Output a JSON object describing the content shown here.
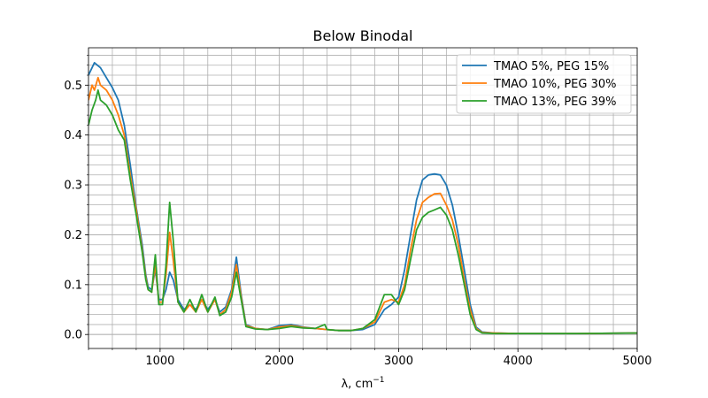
{
  "chart_data": {
    "type": "line",
    "title": "Below Binodal",
    "xlabel": "λ, cm",
    "xlabel_superscript": "−1",
    "ylabel": "",
    "xlim": [
      400,
      5000
    ],
    "ylim": [
      -0.028,
      0.575
    ],
    "x_ticks": [
      1000,
      2000,
      3000,
      4000,
      5000
    ],
    "x_tick_labels": [
      "1000",
      "2000",
      "3000",
      "4000",
      "5000"
    ],
    "y_ticks": [
      0.0,
      0.1,
      0.2,
      0.3,
      0.4,
      0.5
    ],
    "y_tick_labels": [
      "0.0",
      "0.1",
      "0.2",
      "0.3",
      "0.4",
      "0.5"
    ],
    "x_minor_step": 200,
    "y_minor_step": 0.02,
    "grid": true,
    "legend_position": "top-right",
    "series": [
      {
        "name": "TMAO 5%, PEG 15%",
        "color": "#1f77b4",
        "points": [
          [
            400,
            0.52
          ],
          [
            450,
            0.545
          ],
          [
            500,
            0.535
          ],
          [
            550,
            0.515
          ],
          [
            600,
            0.495
          ],
          [
            650,
            0.47
          ],
          [
            700,
            0.42
          ],
          [
            750,
            0.34
          ],
          [
            800,
            0.255
          ],
          [
            850,
            0.18
          ],
          [
            880,
            0.12
          ],
          [
            900,
            0.095
          ],
          [
            930,
            0.09
          ],
          [
            960,
            0.13
          ],
          [
            990,
            0.07
          ],
          [
            1020,
            0.07
          ],
          [
            1050,
            0.09
          ],
          [
            1080,
            0.125
          ],
          [
            1110,
            0.11
          ],
          [
            1150,
            0.07
          ],
          [
            1200,
            0.05
          ],
          [
            1250,
            0.06
          ],
          [
            1300,
            0.05
          ],
          [
            1350,
            0.07
          ],
          [
            1400,
            0.05
          ],
          [
            1460,
            0.07
          ],
          [
            1500,
            0.045
          ],
          [
            1550,
            0.055
          ],
          [
            1600,
            0.09
          ],
          [
            1640,
            0.155
          ],
          [
            1680,
            0.08
          ],
          [
            1720,
            0.02
          ],
          [
            1800,
            0.012
          ],
          [
            1900,
            0.01
          ],
          [
            2000,
            0.018
          ],
          [
            2100,
            0.02
          ],
          [
            2200,
            0.015
          ],
          [
            2300,
            0.012
          ],
          [
            2400,
            0.01
          ],
          [
            2500,
            0.008
          ],
          [
            2600,
            0.008
          ],
          [
            2700,
            0.01
          ],
          [
            2800,
            0.02
          ],
          [
            2880,
            0.05
          ],
          [
            2940,
            0.06
          ],
          [
            3000,
            0.075
          ],
          [
            3050,
            0.13
          ],
          [
            3100,
            0.2
          ],
          [
            3150,
            0.27
          ],
          [
            3200,
            0.31
          ],
          [
            3250,
            0.32
          ],
          [
            3300,
            0.322
          ],
          [
            3350,
            0.32
          ],
          [
            3400,
            0.3
          ],
          [
            3450,
            0.26
          ],
          [
            3500,
            0.2
          ],
          [
            3550,
            0.13
          ],
          [
            3600,
            0.06
          ],
          [
            3650,
            0.015
          ],
          [
            3700,
            0.005
          ],
          [
            3800,
            0.003
          ],
          [
            4000,
            0.002
          ],
          [
            4500,
            0.002
          ],
          [
            5000,
            0.003
          ]
        ]
      },
      {
        "name": "TMAO 10%, PEG 30%",
        "color": "#ff7f0e",
        "points": [
          [
            400,
            0.47
          ],
          [
            430,
            0.5
          ],
          [
            450,
            0.49
          ],
          [
            480,
            0.515
          ],
          [
            500,
            0.5
          ],
          [
            550,
            0.49
          ],
          [
            600,
            0.47
          ],
          [
            650,
            0.44
          ],
          [
            700,
            0.4
          ],
          [
            750,
            0.32
          ],
          [
            800,
            0.25
          ],
          [
            850,
            0.17
          ],
          [
            880,
            0.115
          ],
          [
            900,
            0.09
          ],
          [
            930,
            0.085
          ],
          [
            960,
            0.14
          ],
          [
            990,
            0.065
          ],
          [
            1020,
            0.065
          ],
          [
            1050,
            0.12
          ],
          [
            1080,
            0.205
          ],
          [
            1110,
            0.15
          ],
          [
            1150,
            0.065
          ],
          [
            1200,
            0.045
          ],
          [
            1250,
            0.06
          ],
          [
            1300,
            0.045
          ],
          [
            1350,
            0.07
          ],
          [
            1400,
            0.045
          ],
          [
            1460,
            0.07
          ],
          [
            1500,
            0.04
          ],
          [
            1550,
            0.05
          ],
          [
            1600,
            0.085
          ],
          [
            1640,
            0.14
          ],
          [
            1680,
            0.075
          ],
          [
            1720,
            0.018
          ],
          [
            1800,
            0.012
          ],
          [
            1900,
            0.01
          ],
          [
            2000,
            0.015
          ],
          [
            2100,
            0.018
          ],
          [
            2200,
            0.014
          ],
          [
            2300,
            0.012
          ],
          [
            2400,
            0.01
          ],
          [
            2500,
            0.008
          ],
          [
            2600,
            0.008
          ],
          [
            2700,
            0.012
          ],
          [
            2800,
            0.025
          ],
          [
            2880,
            0.065
          ],
          [
            2940,
            0.07
          ],
          [
            3000,
            0.065
          ],
          [
            3050,
            0.1
          ],
          [
            3100,
            0.17
          ],
          [
            3150,
            0.23
          ],
          [
            3200,
            0.265
          ],
          [
            3250,
            0.275
          ],
          [
            3300,
            0.282
          ],
          [
            3350,
            0.283
          ],
          [
            3400,
            0.26
          ],
          [
            3450,
            0.23
          ],
          [
            3500,
            0.18
          ],
          [
            3550,
            0.11
          ],
          [
            3600,
            0.05
          ],
          [
            3650,
            0.012
          ],
          [
            3700,
            0.004
          ],
          [
            3800,
            0.003
          ],
          [
            4000,
            0.002
          ],
          [
            4500,
            0.002
          ],
          [
            5000,
            0.003
          ]
        ]
      },
      {
        "name": "TMAO 13%, PEG 39%",
        "color": "#2ca02c",
        "points": [
          [
            400,
            0.42
          ],
          [
            430,
            0.45
          ],
          [
            460,
            0.47
          ],
          [
            480,
            0.49
          ],
          [
            500,
            0.47
          ],
          [
            550,
            0.46
          ],
          [
            600,
            0.44
          ],
          [
            650,
            0.41
          ],
          [
            700,
            0.39
          ],
          [
            750,
            0.31
          ],
          [
            800,
            0.24
          ],
          [
            850,
            0.165
          ],
          [
            880,
            0.11
          ],
          [
            900,
            0.09
          ],
          [
            930,
            0.085
          ],
          [
            960,
            0.16
          ],
          [
            990,
            0.06
          ],
          [
            1020,
            0.06
          ],
          [
            1050,
            0.14
          ],
          [
            1080,
            0.265
          ],
          [
            1110,
            0.19
          ],
          [
            1150,
            0.065
          ],
          [
            1200,
            0.045
          ],
          [
            1250,
            0.07
          ],
          [
            1300,
            0.045
          ],
          [
            1350,
            0.08
          ],
          [
            1400,
            0.045
          ],
          [
            1460,
            0.075
          ],
          [
            1500,
            0.038
          ],
          [
            1550,
            0.045
          ],
          [
            1600,
            0.075
          ],
          [
            1640,
            0.125
          ],
          [
            1680,
            0.07
          ],
          [
            1720,
            0.016
          ],
          [
            1800,
            0.011
          ],
          [
            1900,
            0.01
          ],
          [
            2000,
            0.012
          ],
          [
            2100,
            0.016
          ],
          [
            2200,
            0.013
          ],
          [
            2300,
            0.012
          ],
          [
            2380,
            0.02
          ],
          [
            2400,
            0.01
          ],
          [
            2500,
            0.008
          ],
          [
            2600,
            0.008
          ],
          [
            2700,
            0.012
          ],
          [
            2800,
            0.03
          ],
          [
            2880,
            0.08
          ],
          [
            2940,
            0.08
          ],
          [
            3000,
            0.06
          ],
          [
            3050,
            0.09
          ],
          [
            3100,
            0.15
          ],
          [
            3150,
            0.21
          ],
          [
            3200,
            0.235
          ],
          [
            3250,
            0.245
          ],
          [
            3300,
            0.25
          ],
          [
            3350,
            0.255
          ],
          [
            3400,
            0.24
          ],
          [
            3450,
            0.21
          ],
          [
            3500,
            0.16
          ],
          [
            3550,
            0.1
          ],
          [
            3600,
            0.04
          ],
          [
            3650,
            0.01
          ],
          [
            3700,
            0.003
          ],
          [
            3800,
            0.002
          ],
          [
            4000,
            0.002
          ],
          [
            4500,
            0.002
          ],
          [
            5000,
            0.003
          ]
        ]
      }
    ]
  }
}
